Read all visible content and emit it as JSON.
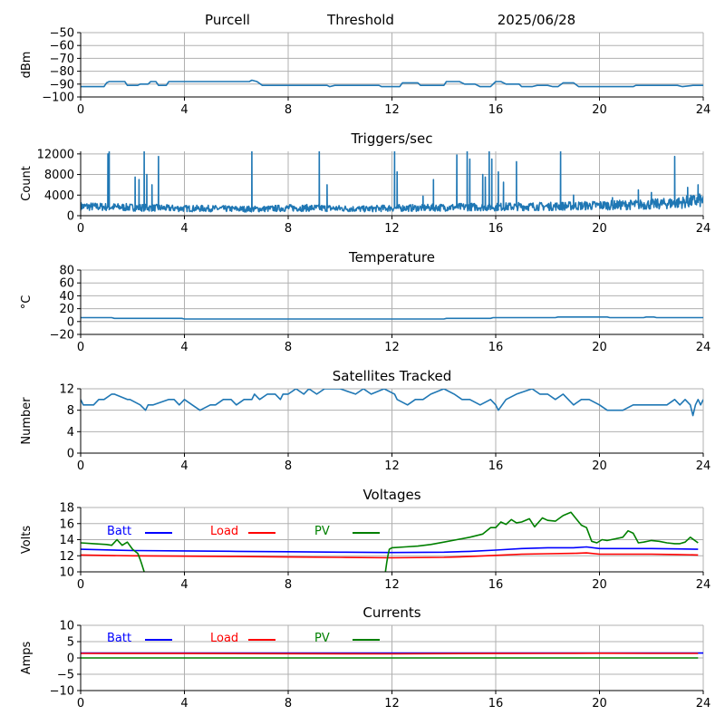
{
  "header": {
    "station": "Purcell",
    "mode": "Threshold",
    "date": "2025/06/28"
  },
  "colors": {
    "series": "#1f77b4",
    "grid": "#b0b0b0",
    "batt": "#0000ff",
    "load": "#ff0000",
    "pv": "#008000"
  },
  "chart_data": [
    {
      "type": "line",
      "title": "",
      "xlabel": "",
      "ylabel": "dBm",
      "xlim": [
        0,
        24
      ],
      "ylim": [
        -100,
        -50
      ],
      "xticks": [
        0,
        4,
        8,
        12,
        16,
        20,
        24
      ],
      "yticks": [
        -100,
        -90,
        -80,
        -70,
        -60,
        -50
      ],
      "grid": true,
      "series": [
        {
          "x": [
            0,
            0.9,
            1.0,
            1.1,
            1.7,
            1.8,
            2.2,
            2.3,
            2.6,
            2.7,
            2.9,
            3.0,
            3.3,
            3.4,
            6.5,
            6.6,
            6.8,
            7.0,
            9.5,
            9.6,
            9.8,
            9.9,
            11.5,
            11.6,
            12.3,
            12.4,
            13.0,
            13.1,
            14.0,
            14.1,
            14.6,
            14.8,
            15.2,
            15.4,
            15.8,
            16.0,
            16.2,
            16.4,
            16.9,
            17.0,
            17.4,
            17.6,
            18.0,
            18.2,
            18.4,
            18.6,
            19.0,
            19.2,
            21.3,
            21.4,
            23.0,
            23.2,
            23.6,
            24
          ],
          "y": [
            -92,
            -92,
            -89,
            -88,
            -88,
            -91,
            -91,
            -90,
            -90,
            -88,
            -88,
            -91,
            -91,
            -88,
            -88,
            -87,
            -88,
            -91,
            -91,
            -92,
            -91,
            -91,
            -91,
            -92,
            -92,
            -89,
            -89,
            -91,
            -91,
            -88,
            -88,
            -90,
            -90,
            -92,
            -92,
            -88,
            -88,
            -90,
            -90,
            -92,
            -92,
            -91,
            -91,
            -92,
            -92,
            -89,
            -89,
            -92,
            -92,
            -91,
            -91,
            -92,
            -91,
            -91
          ]
        }
      ]
    },
    {
      "type": "line",
      "title": "Triggers/sec",
      "xlabel": "",
      "ylabel": "Count",
      "xlim": [
        0,
        24
      ],
      "ylim": [
        0,
        12500
      ],
      "xticks": [
        0,
        4,
        8,
        12,
        16,
        20,
        24
      ],
      "yticks": [
        0,
        4000,
        8000,
        12000
      ],
      "grid": true,
      "baseline": {
        "x": [
          0,
          1,
          2,
          3,
          4,
          5,
          6,
          7,
          8,
          9,
          10,
          11,
          12,
          13,
          14,
          15,
          16,
          17,
          18,
          19,
          20,
          21,
          22,
          23,
          24
        ],
        "y": [
          1800,
          1700,
          1600,
          1500,
          1400,
          1400,
          1300,
          1300,
          1500,
          1500,
          1400,
          1300,
          1500,
          1500,
          1600,
          1700,
          1700,
          1800,
          1800,
          1900,
          2000,
          2100,
          2200,
          2500,
          3000
        ]
      },
      "spikes": [
        {
          "x": 1.05,
          "y": 12000
        },
        {
          "x": 1.1,
          "y": 12500
        },
        {
          "x": 2.1,
          "y": 7500
        },
        {
          "x": 2.25,
          "y": 7000
        },
        {
          "x": 2.45,
          "y": 12500
        },
        {
          "x": 2.55,
          "y": 8000
        },
        {
          "x": 2.75,
          "y": 6000
        },
        {
          "x": 3.0,
          "y": 11500
        },
        {
          "x": 6.6,
          "y": 12500
        },
        {
          "x": 9.2,
          "y": 12500
        },
        {
          "x": 9.5,
          "y": 6000
        },
        {
          "x": 12.1,
          "y": 12500
        },
        {
          "x": 12.2,
          "y": 8500
        },
        {
          "x": 13.2,
          "y": 3800
        },
        {
          "x": 13.6,
          "y": 7000
        },
        {
          "x": 14.5,
          "y": 11800
        },
        {
          "x": 14.9,
          "y": 12500
        },
        {
          "x": 15.0,
          "y": 11000
        },
        {
          "x": 15.5,
          "y": 8000
        },
        {
          "x": 15.6,
          "y": 7500
        },
        {
          "x": 15.75,
          "y": 12500
        },
        {
          "x": 15.85,
          "y": 11000
        },
        {
          "x": 16.1,
          "y": 8500
        },
        {
          "x": 16.3,
          "y": 6500
        },
        {
          "x": 16.8,
          "y": 10500
        },
        {
          "x": 18.5,
          "y": 12500
        },
        {
          "x": 19.0,
          "y": 4000
        },
        {
          "x": 20.5,
          "y": 3500
        },
        {
          "x": 21.5,
          "y": 5000
        },
        {
          "x": 22.0,
          "y": 4500
        },
        {
          "x": 22.9,
          "y": 11500
        },
        {
          "x": 23.4,
          "y": 5500
        },
        {
          "x": 23.8,
          "y": 6000
        }
      ]
    },
    {
      "type": "line",
      "title": "Temperature",
      "xlabel": "",
      "ylabel": "°C",
      "xlim": [
        0,
        24
      ],
      "ylim": [
        -20,
        80
      ],
      "xticks": [
        0,
        4,
        8,
        12,
        16,
        20,
        24
      ],
      "yticks": [
        -20,
        0,
        20,
        40,
        60,
        80
      ],
      "grid": true,
      "series": [
        {
          "x": [
            0,
            1.2,
            1.3,
            3.9,
            4.0,
            11.8,
            11.9,
            14.0,
            14.1,
            15.8,
            15.9,
            18.3,
            18.4,
            20.3,
            20.4,
            21.7,
            21.8,
            22.1,
            22.2,
            24
          ],
          "y": [
            6,
            6,
            5,
            5,
            4,
            4,
            4,
            4,
            5,
            5,
            6,
            6,
            7,
            7,
            6,
            6,
            7,
            7,
            6,
            6
          ]
        }
      ]
    },
    {
      "type": "line",
      "title": "Satellites Tracked",
      "xlabel": "",
      "ylabel": "Number",
      "xlim": [
        0,
        24
      ],
      "ylim": [
        0,
        12
      ],
      "xticks": [
        0,
        4,
        8,
        12,
        16,
        20,
        24
      ],
      "yticks": [
        0,
        4,
        8,
        12
      ],
      "grid": true,
      "series": [
        {
          "x": [
            0,
            0.1,
            0.5,
            0.7,
            0.9,
            1.2,
            1.3,
            1.8,
            1.9,
            2.3,
            2.5,
            2.6,
            2.8,
            3.4,
            3.6,
            3.8,
            4.0,
            4.3,
            4.6,
            5.0,
            5.2,
            5.5,
            5.8,
            6.0,
            6.3,
            6.6,
            6.7,
            6.9,
            7.2,
            7.5,
            7.7,
            7.8,
            8.0,
            8.3,
            8.6,
            8.8,
            9.1,
            9.4,
            10.0,
            10.6,
            10.9,
            11.2,
            11.7,
            12.1,
            12.2,
            12.6,
            12.9,
            13.2,
            13.5,
            14.0,
            14.4,
            14.7,
            15.0,
            15.4,
            15.8,
            16.0,
            16.1,
            16.4,
            16.8,
            17.4,
            17.7,
            18.0,
            18.3,
            18.6,
            19.0,
            19.3,
            19.6,
            20.0,
            20.3,
            20.6,
            20.9,
            21.3,
            21.6,
            22.0,
            22.3,
            22.6,
            22.9,
            23.1,
            23.3,
            23.5,
            23.6,
            23.7,
            23.8,
            23.9,
            24.0
          ],
          "y": [
            10,
            9,
            9,
            10,
            10,
            11,
            11,
            10,
            10,
            9,
            8,
            9,
            9,
            10,
            10,
            9,
            10,
            9,
            8,
            9,
            9,
            10,
            10,
            9,
            10,
            10,
            11,
            10,
            11,
            11,
            10,
            11,
            11,
            12,
            11,
            12,
            11,
            12,
            12,
            11,
            12,
            11,
            12,
            11,
            10,
            9,
            10,
            10,
            11,
            12,
            11,
            10,
            10,
            9,
            10,
            9,
            8,
            10,
            11,
            12,
            11,
            11,
            10,
            11,
            9,
            10,
            10,
            9,
            8,
            8,
            8,
            9,
            9,
            9,
            9,
            9,
            10,
            9,
            10,
            9,
            7,
            9,
            10,
            9,
            10
          ]
        }
      ]
    },
    {
      "type": "line",
      "title": "Voltages",
      "xlabel": "",
      "ylabel": "Volts",
      "xlim": [
        0,
        24
      ],
      "ylim": [
        10,
        18
      ],
      "xticks": [
        0,
        4,
        8,
        12,
        16,
        20,
        24
      ],
      "yticks": [
        10,
        12,
        14,
        16,
        18
      ],
      "grid": true,
      "legend": {
        "placement": "top-left",
        "inline": true
      },
      "series": [
        {
          "name": "Batt",
          "color": "#0000ff",
          "x": [
            0,
            2,
            4,
            6,
            8,
            10,
            12,
            14,
            15,
            16,
            17,
            18,
            19,
            19.5,
            20,
            21,
            22,
            23,
            23.8
          ],
          "y": [
            12.8,
            12.65,
            12.6,
            12.55,
            12.5,
            12.45,
            12.4,
            12.45,
            12.55,
            12.7,
            12.9,
            13.0,
            13.0,
            13.1,
            12.9,
            12.9,
            12.9,
            12.85,
            12.8
          ]
        },
        {
          "name": "Load",
          "color": "#ff0000",
          "x": [
            0,
            2,
            4,
            6,
            8,
            10,
            12,
            14,
            15,
            16,
            17,
            18,
            19,
            19.5,
            20,
            21,
            22,
            23,
            23.8
          ],
          "y": [
            12.1,
            12.0,
            11.95,
            11.9,
            11.85,
            11.8,
            11.75,
            11.8,
            11.9,
            12.05,
            12.2,
            12.25,
            12.3,
            12.35,
            12.2,
            12.2,
            12.2,
            12.15,
            12.1
          ]
        },
        {
          "name": "PV",
          "color": "#008000",
          "segments": [
            {
              "x": [
                0,
                0.5,
                1.0,
                1.2,
                1.4,
                1.6,
                1.8,
                2.0,
                2.2,
                2.3,
                2.35,
                2.4,
                2.45
              ],
              "y": [
                13.6,
                13.5,
                13.4,
                13.3,
                14.0,
                13.3,
                13.7,
                12.8,
                12.3,
                11.5,
                11.0,
                10.5,
                10.0
              ]
            },
            {
              "x": [
                11.75,
                11.8,
                11.85,
                11.9,
                12.0,
                12.5,
                13.0,
                13.5,
                14.0,
                14.5,
                15.0,
                15.5,
                15.8,
                16.0,
                16.2,
                16.4,
                16.6,
                16.8,
                17.0,
                17.3,
                17.5,
                17.8,
                18.0,
                18.3,
                18.6,
                18.9,
                19.1,
                19.3,
                19.5,
                19.7,
                19.9,
                20.1,
                20.3,
                20.6,
                20.9,
                21.1,
                21.3,
                21.5,
                21.7,
                22.0,
                22.3,
                22.6,
                22.9,
                23.1,
                23.3,
                23.5,
                23.8
              ],
              "y": [
                10.0,
                11.2,
                12.1,
                12.8,
                13.0,
                13.1,
                13.2,
                13.4,
                13.7,
                14.0,
                14.3,
                14.7,
                15.5,
                15.5,
                16.2,
                15.9,
                16.5,
                16.1,
                16.2,
                16.6,
                15.6,
                16.7,
                16.4,
                16.3,
                17.0,
                17.4,
                16.6,
                15.8,
                15.5,
                13.8,
                13.6,
                14.0,
                13.9,
                14.1,
                14.3,
                15.1,
                14.8,
                13.6,
                13.7,
                13.9,
                13.8,
                13.6,
                13.5,
                13.5,
                13.7,
                14.3,
                13.6
              ]
            }
          ]
        }
      ]
    },
    {
      "type": "line",
      "title": "Currents",
      "xlabel": "",
      "ylabel": "Amps",
      "xlim": [
        0,
        24
      ],
      "ylim": [
        -10,
        10
      ],
      "xticks": [
        0,
        4,
        8,
        12,
        16,
        20,
        24
      ],
      "yticks": [
        -10,
        -5,
        0,
        5,
        10
      ],
      "grid": true,
      "legend": {
        "placement": "top-left",
        "inline": true
      },
      "series": [
        {
          "name": "Batt",
          "color": "#0000ff",
          "x": [
            0,
            24
          ],
          "y": [
            1.5,
            1.5
          ]
        },
        {
          "name": "Load",
          "color": "#ff0000",
          "x": [
            0,
            4,
            8,
            12,
            16,
            18,
            20,
            22,
            23.8
          ],
          "y": [
            1.4,
            1.35,
            1.3,
            1.25,
            1.35,
            1.4,
            1.45,
            1.4,
            1.4
          ]
        },
        {
          "name": "PV",
          "color": "#008000",
          "x": [
            0,
            23.8
          ],
          "y": [
            0,
            0
          ]
        }
      ]
    }
  ]
}
